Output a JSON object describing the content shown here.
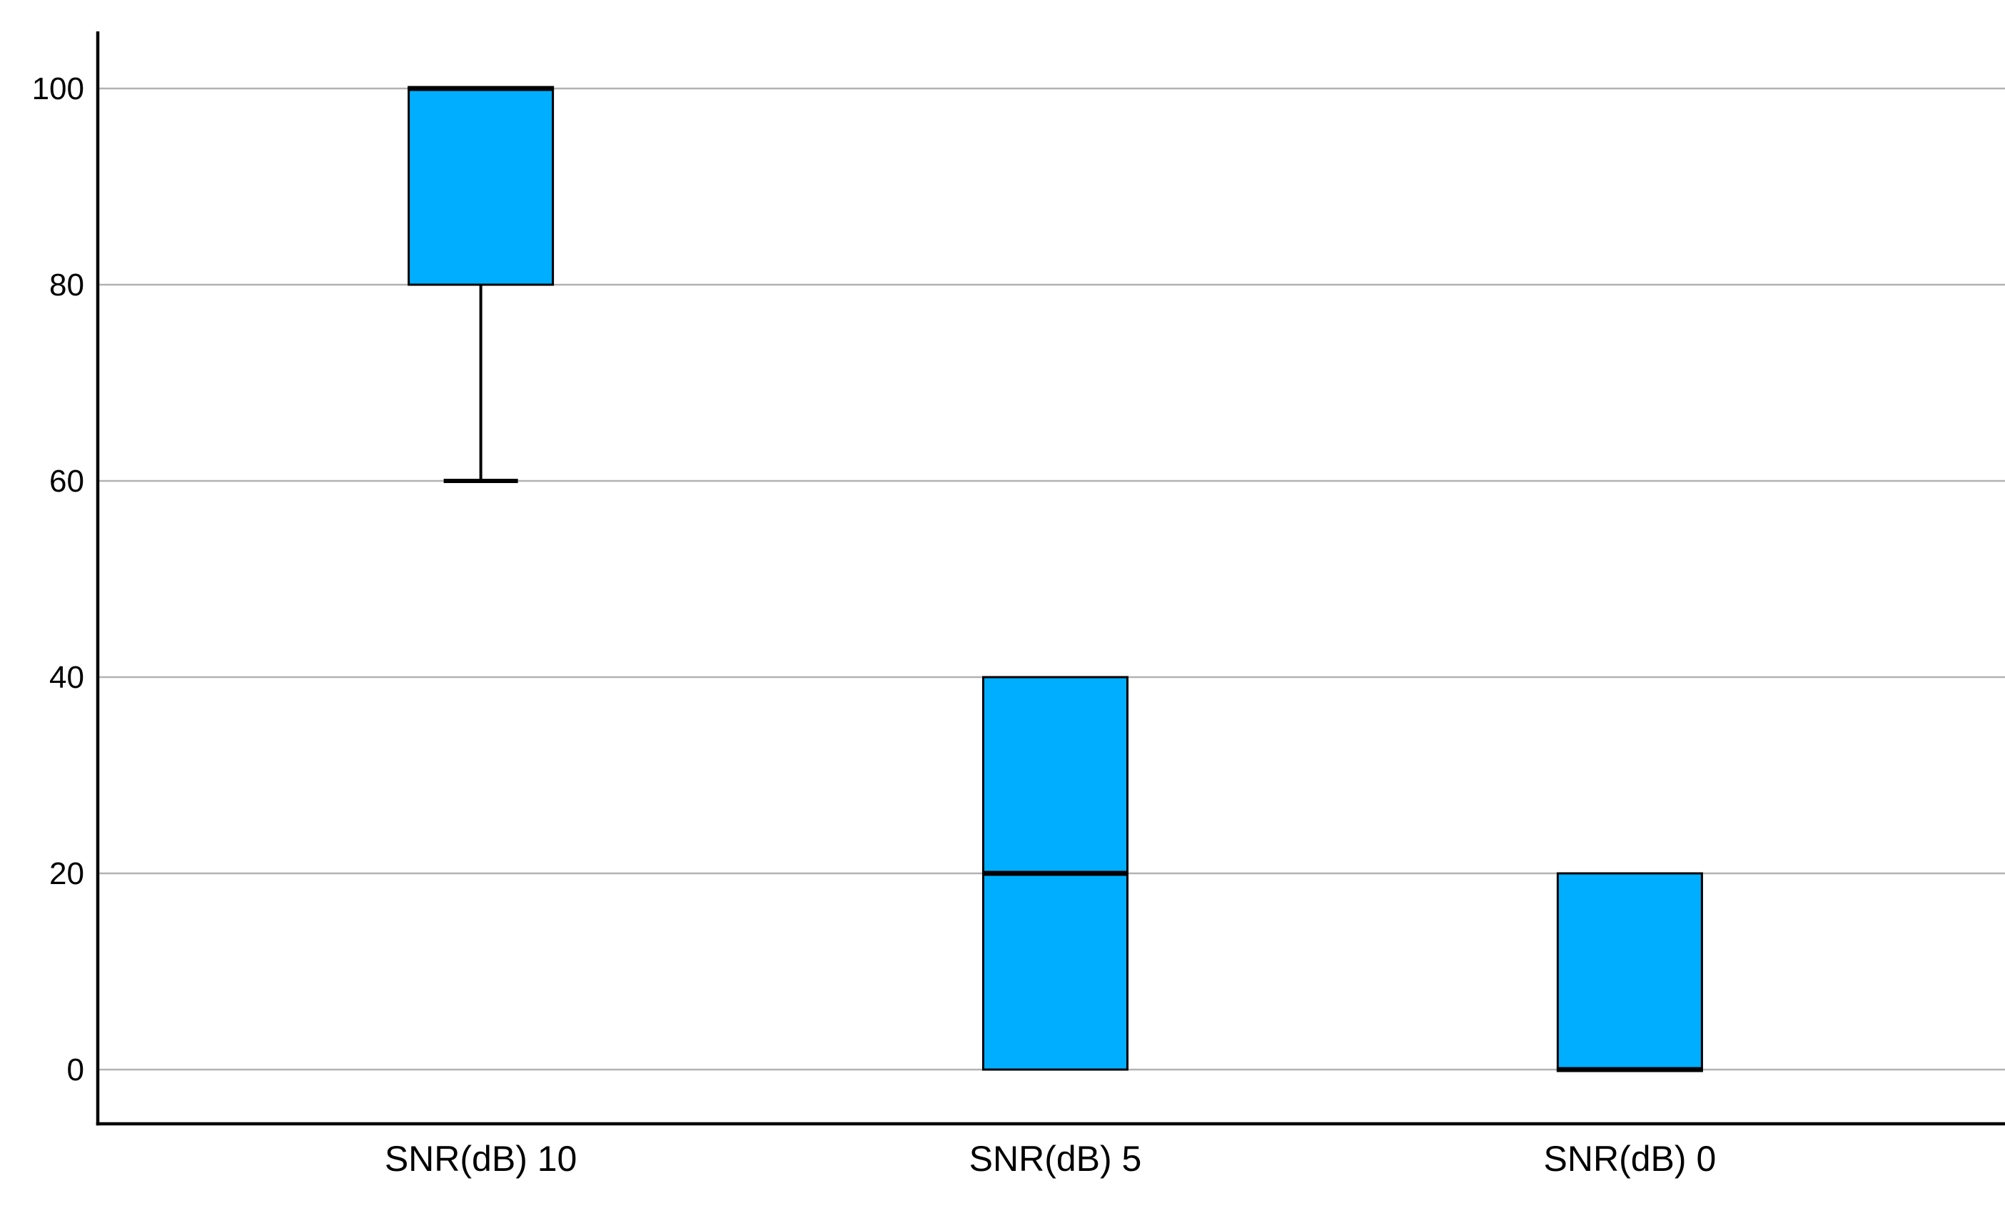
{
  "chart_data": {
    "type": "boxplot",
    "title": "",
    "xlabel": "",
    "ylabel": "",
    "categories": [
      "SNR(dB) 10",
      "SNR(dB) 5",
      "SNR(dB) 0"
    ],
    "series": [
      {
        "category": "SNR(dB) 10",
        "q1": 80,
        "median": 100,
        "q3": 100,
        "whisker_low": 60,
        "whisker_high": 100
      },
      {
        "category": "SNR(dB) 5",
        "q1": 0,
        "median": 20,
        "q3": 40,
        "whisker_low": 0,
        "whisker_high": 40
      },
      {
        "category": "SNR(dB) 0",
        "q1": 0,
        "median": 0,
        "q3": 20,
        "whisker_low": 0,
        "whisker_high": 20
      }
    ],
    "y_ticks": [
      0,
      20,
      40,
      60,
      80,
      100
    ],
    "y_tick_labels": [
      "0",
      "20",
      "40",
      "60",
      "80",
      "100"
    ],
    "ylim": [
      0,
      100
    ],
    "grid": true,
    "legend": false,
    "colors": {
      "box_fill": "#00AEFF",
      "box_border": "#000000",
      "median_line": "#000000",
      "whisker": "#000000",
      "gridline": "#B2B2B2",
      "axis": "#000000",
      "background": "#FFFFFF",
      "label_text": "#000000"
    }
  }
}
